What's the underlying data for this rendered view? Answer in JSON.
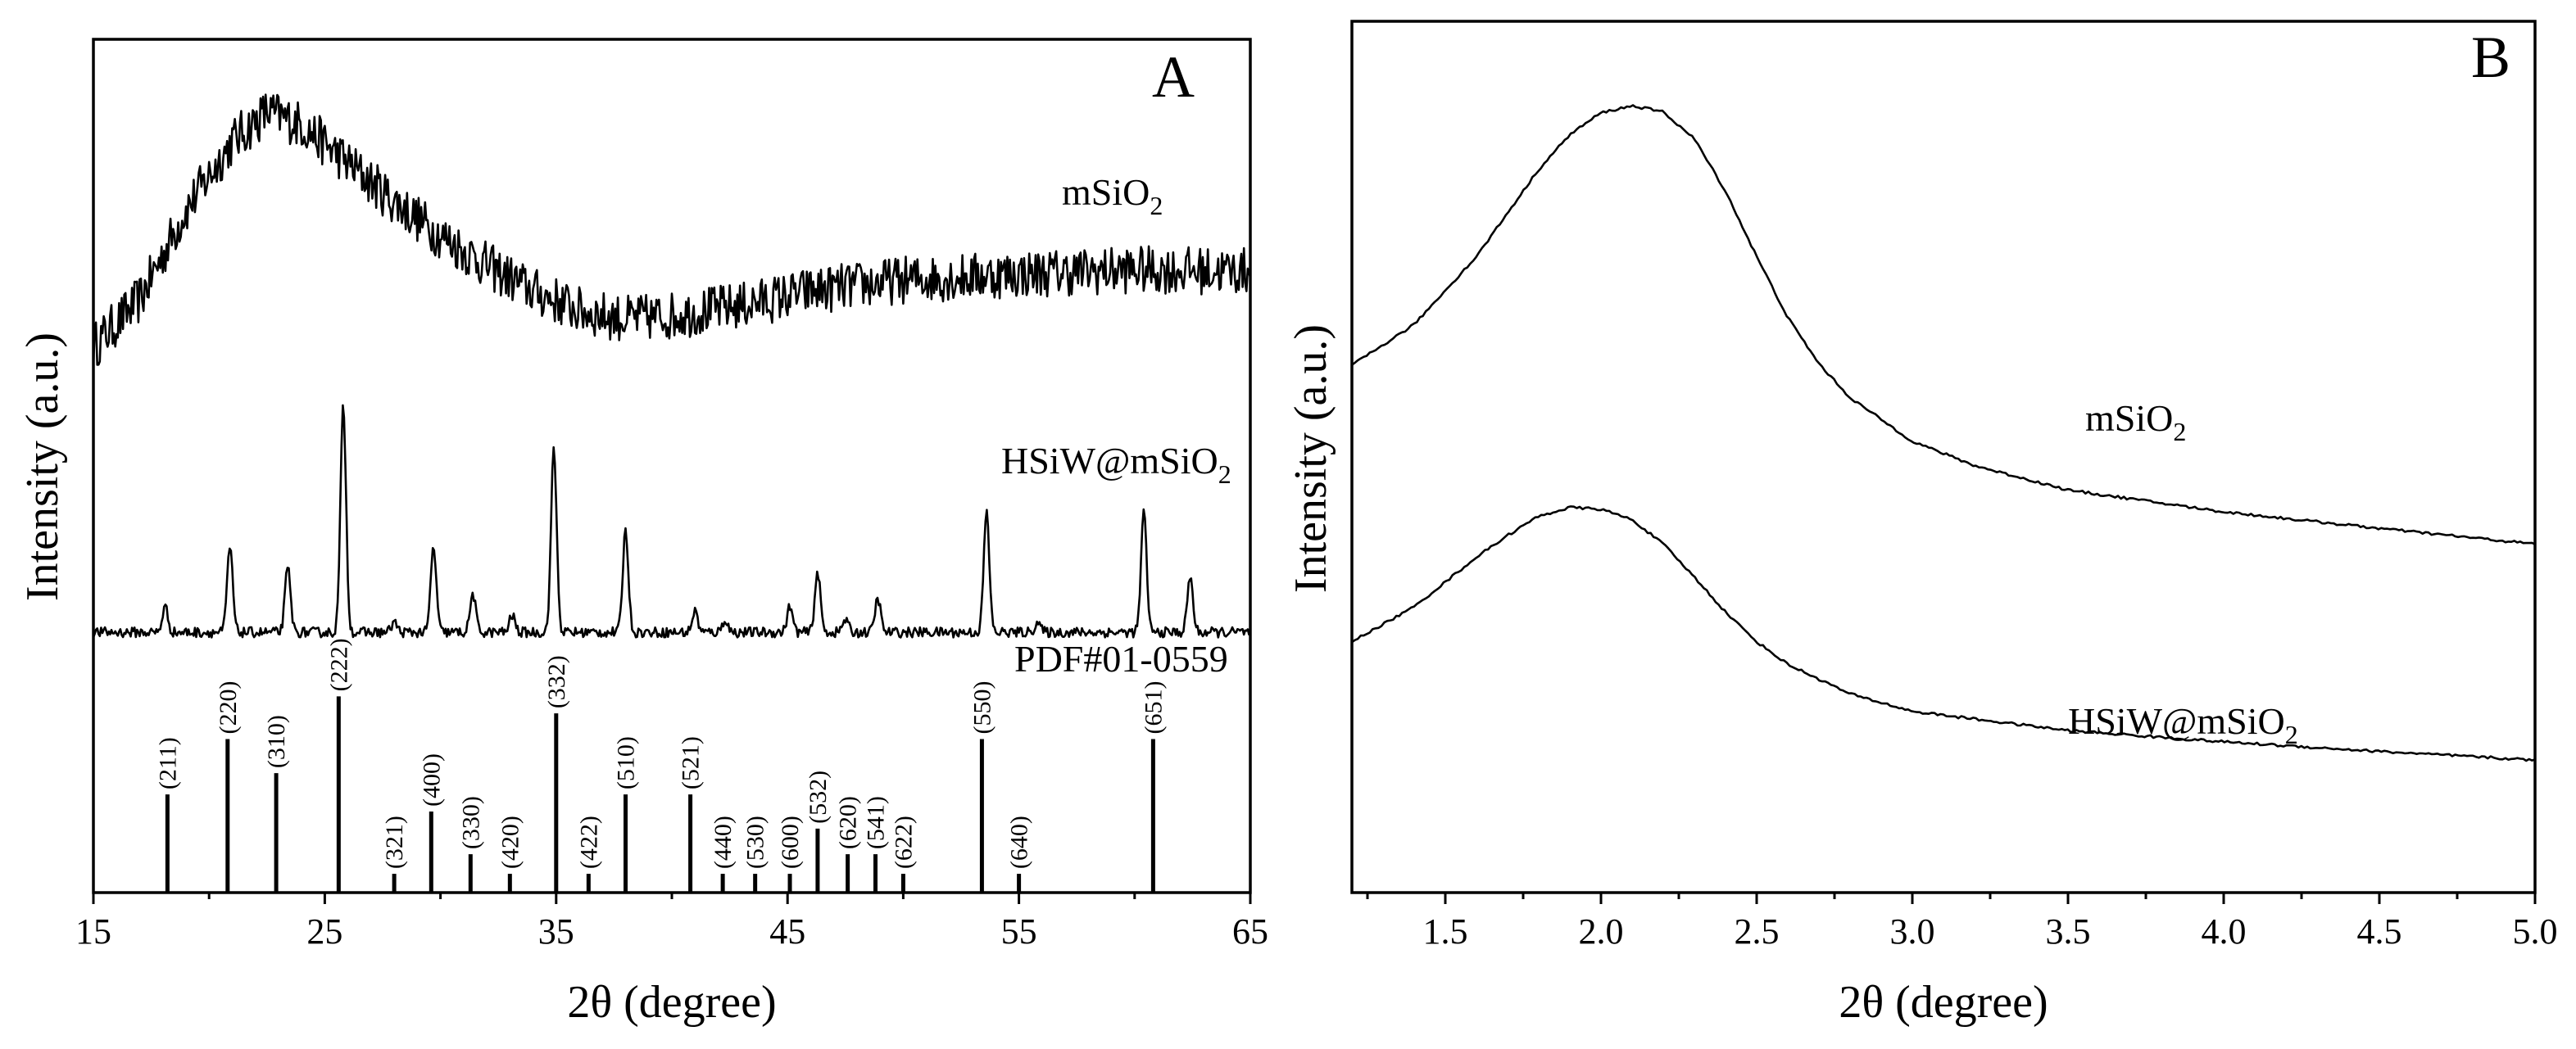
{
  "chart_data": [
    {
      "panel": "A",
      "type": "line",
      "xlabel": "2θ (degree)",
      "ylabel": "Intensity (a.u.)",
      "xlim": [
        15,
        65
      ],
      "xticks": [
        15,
        25,
        35,
        45,
        55,
        65
      ],
      "series": [
        {
          "name": "mSiO2",
          "label_main": "mSiO",
          "label_sub": "2",
          "trend": [
            [
              15,
              0.64
            ],
            [
              17,
              0.695
            ],
            [
              19,
              0.8
            ],
            [
              21,
              0.88
            ],
            [
              22.5,
              0.915
            ],
            [
              24,
              0.9
            ],
            [
              26,
              0.855
            ],
            [
              28,
              0.81
            ],
            [
              30,
              0.77
            ],
            [
              32,
              0.735
            ],
            [
              34,
              0.705
            ],
            [
              36,
              0.682
            ],
            [
              38,
              0.672
            ],
            [
              40,
              0.676
            ],
            [
              43,
              0.688
            ],
            [
              46,
              0.705
            ],
            [
              50,
              0.718
            ],
            [
              55,
              0.725
            ],
            [
              60,
              0.73
            ],
            [
              65,
              0.728
            ]
          ],
          "noise_amplitude": 0.028
        },
        {
          "name": "HSiW@mSiO2",
          "label_main": "HSiW@mSiO",
          "label_sub": "2",
          "baseline": 0.305,
          "peaks": [
            [
              18.1,
              0.03
            ],
            [
              20.9,
              0.1
            ],
            [
              23.4,
              0.075
            ],
            [
              25.8,
              0.265
            ],
            [
              28.0,
              0.012
            ],
            [
              29.7,
              0.1
            ],
            [
              31.4,
              0.045
            ],
            [
              33.1,
              0.02
            ],
            [
              34.9,
              0.215
            ],
            [
              38.0,
              0.12
            ],
            [
              41.0,
              0.025
            ],
            [
              42.3,
              0.015
            ],
            [
              45.1,
              0.03
            ],
            [
              46.3,
              0.07
            ],
            [
              47.5,
              0.015
            ],
            [
              48.9,
              0.04
            ],
            [
              53.6,
              0.14
            ],
            [
              55.8,
              0.012
            ],
            [
              60.4,
              0.14
            ],
            [
              62.4,
              0.065
            ]
          ],
          "noise_amplitude": 0.006
        }
      ],
      "reference": {
        "name": "PDF#01-0559",
        "sticks": [
          {
            "x": 18.2,
            "h": 0.115,
            "hkl": "(211)"
          },
          {
            "x": 20.8,
            "h": 0.18,
            "hkl": "(220)"
          },
          {
            "x": 22.9,
            "h": 0.14,
            "hkl": "(310)"
          },
          {
            "x": 25.6,
            "h": 0.23,
            "hkl": "(222)"
          },
          {
            "x": 28.0,
            "h": 0.022,
            "hkl": "(321)"
          },
          {
            "x": 29.6,
            "h": 0.095,
            "hkl": "(400)"
          },
          {
            "x": 31.3,
            "h": 0.045,
            "hkl": "(330)"
          },
          {
            "x": 33.0,
            "h": 0.022,
            "hkl": "(420)"
          },
          {
            "x": 35.0,
            "h": 0.21,
            "hkl": "(332)"
          },
          {
            "x": 36.4,
            "h": 0.022,
            "hkl": "(422)"
          },
          {
            "x": 38.0,
            "h": 0.115,
            "hkl": "(510)"
          },
          {
            "x": 40.8,
            "h": 0.115,
            "hkl": "(521)"
          },
          {
            "x": 42.2,
            "h": 0.022,
            "hkl": "(440)"
          },
          {
            "x": 43.6,
            "h": 0.022,
            "hkl": "(530)"
          },
          {
            "x": 45.1,
            "h": 0.022,
            "hkl": "(600)"
          },
          {
            "x": 46.3,
            "h": 0.075,
            "hkl": "(532)"
          },
          {
            "x": 47.6,
            "h": 0.045,
            "hkl": "(620)"
          },
          {
            "x": 48.8,
            "h": 0.045,
            "hkl": "(541)"
          },
          {
            "x": 50.0,
            "h": 0.022,
            "hkl": "(622)"
          },
          {
            "x": 53.4,
            "h": 0.18,
            "hkl": "(550)"
          },
          {
            "x": 55.0,
            "h": 0.022,
            "hkl": "(640)"
          },
          {
            "x": 60.8,
            "h": 0.18,
            "hkl": "(651)"
          }
        ]
      }
    },
    {
      "panel": "B",
      "type": "line",
      "xlabel": "2θ (degree)",
      "ylabel": "Intensity (a.u.)",
      "xlim": [
        1.2,
        5.0
      ],
      "xticks": [
        "1.5",
        "2.0",
        "2.5",
        "3.0",
        "3.5",
        "4.0",
        "4.5",
        "5.0"
      ],
      "series": [
        {
          "name": "mSiO2",
          "label_main": "mSiO",
          "label_sub": "2",
          "points": [
            [
              1.2,
              0.605
            ],
            [
              1.4,
              0.652
            ],
            [
              1.6,
              0.73
            ],
            [
              1.8,
              0.83
            ],
            [
              1.9,
              0.87
            ],
            [
              2.0,
              0.895
            ],
            [
              2.1,
              0.903
            ],
            [
              2.2,
              0.896
            ],
            [
              2.3,
              0.865
            ],
            [
              2.4,
              0.805
            ],
            [
              2.5,
              0.73
            ],
            [
              2.6,
              0.66
            ],
            [
              2.7,
              0.607
            ],
            [
              2.8,
              0.568
            ],
            [
              3.0,
              0.518
            ],
            [
              3.2,
              0.49
            ],
            [
              3.5,
              0.462
            ],
            [
              4.0,
              0.437
            ],
            [
              4.5,
              0.418
            ],
            [
              5.0,
              0.4
            ]
          ]
        },
        {
          "name": "HSiW@mSiO2",
          "label_main": "HSiW@mSiO",
          "label_sub": "2",
          "points": [
            [
              1.2,
              0.288
            ],
            [
              1.4,
              0.328
            ],
            [
              1.6,
              0.385
            ],
            [
              1.7,
              0.41
            ],
            [
              1.8,
              0.432
            ],
            [
              1.9,
              0.442
            ],
            [
              2.0,
              0.44
            ],
            [
              2.1,
              0.428
            ],
            [
              2.2,
              0.4
            ],
            [
              2.3,
              0.362
            ],
            [
              2.4,
              0.322
            ],
            [
              2.5,
              0.288
            ],
            [
              2.6,
              0.262
            ],
            [
              2.8,
              0.228
            ],
            [
              3.0,
              0.208
            ],
            [
              3.5,
              0.186
            ],
            [
              4.0,
              0.173
            ],
            [
              4.5,
              0.162
            ],
            [
              5.0,
              0.152
            ]
          ]
        }
      ]
    }
  ]
}
